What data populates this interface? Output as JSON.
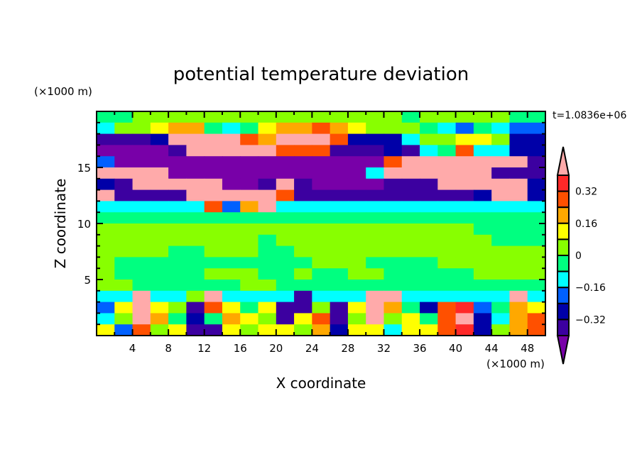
{
  "chart_data": {
    "type": "heatmap",
    "title": "potential temperature deviation",
    "xlabel": "X coordinate",
    "ylabel": "Z coordinate",
    "x_unit_label": "(×1000 m)",
    "y_unit_label": "(×1000 m)",
    "time_label": "t=1.0836e+06",
    "xlim": [
      0,
      50
    ],
    "ylim": [
      0,
      20
    ],
    "x_ticks": [
      4,
      8,
      12,
      16,
      20,
      24,
      28,
      32,
      36,
      40,
      44,
      48
    ],
    "y_ticks": [
      5,
      10,
      15
    ],
    "grid_dx": 2,
    "grid_dz": 1,
    "levels": [
      -0.4,
      -0.32,
      -0.24,
      -0.16,
      -0.08,
      0,
      0.08,
      0.16,
      0.24,
      0.32,
      0.4
    ],
    "colorbar_labels": [
      {
        "value": 0.32,
        "text": "0.32"
      },
      {
        "value": 0.16,
        "text": "0.16"
      },
      {
        "value": 0,
        "text": "0"
      },
      {
        "value": -0.16,
        "text": "−0.16"
      },
      {
        "value": -0.32,
        "text": "−0.32"
      }
    ],
    "colors": [
      "#7800a8",
      "#3c00a0",
      "#0000a8",
      "#0060ff",
      "#00ffff",
      "#00ff80",
      "#88ff00",
      "#ffff00",
      "#ffa800",
      "#ff5000",
      "#ff2828",
      "#ffaaaa"
    ],
    "rows_top_to_bottom": [
      [
        5,
        5,
        6,
        6,
        6,
        6,
        6,
        6,
        6,
        6,
        6,
        6,
        6,
        6,
        6,
        6,
        6,
        5,
        6,
        6,
        6,
        6,
        6,
        5,
        5
      ],
      [
        4,
        6,
        6,
        7,
        8,
        8,
        5,
        4,
        5,
        7,
        8,
        8,
        9,
        8,
        7,
        6,
        6,
        6,
        5,
        4,
        3,
        5,
        4,
        3,
        3
      ],
      [
        1,
        1,
        1,
        2,
        11,
        11,
        11,
        11,
        9,
        8,
        11,
        11,
        11,
        9,
        2,
        2,
        2,
        4,
        6,
        6,
        7,
        7,
        6,
        2,
        2
      ],
      [
        0,
        0,
        0,
        0,
        1,
        11,
        11,
        11,
        11,
        11,
        9,
        9,
        9,
        1,
        1,
        1,
        2,
        1,
        4,
        5,
        9,
        4,
        4,
        2,
        2
      ],
      [
        3,
        0,
        0,
        0,
        0,
        0,
        0,
        0,
        0,
        0,
        0,
        0,
        0,
        0,
        0,
        0,
        9,
        11,
        11,
        11,
        11,
        11,
        11,
        11,
        1
      ],
      [
        11,
        11,
        11,
        11,
        0,
        0,
        0,
        0,
        0,
        0,
        0,
        0,
        0,
        0,
        0,
        4,
        11,
        11,
        11,
        11,
        11,
        11,
        1,
        1,
        1
      ],
      [
        2,
        1,
        11,
        11,
        11,
        11,
        11,
        0,
        0,
        1,
        11,
        1,
        0,
        0,
        0,
        0,
        1,
        1,
        1,
        11,
        11,
        11,
        11,
        11,
        2
      ],
      [
        11,
        1,
        1,
        1,
        1,
        11,
        11,
        11,
        11,
        11,
        9,
        1,
        1,
        1,
        1,
        1,
        1,
        1,
        1,
        1,
        1,
        2,
        11,
        11,
        2
      ],
      [
        4,
        4,
        4,
        4,
        4,
        4,
        9,
        3,
        8,
        11,
        4,
        4,
        4,
        4,
        4,
        4,
        4,
        4,
        4,
        4,
        4,
        4,
        4,
        4,
        4
      ],
      [
        5,
        5,
        5,
        5,
        5,
        5,
        5,
        5,
        5,
        5,
        5,
        5,
        5,
        5,
        5,
        5,
        5,
        5,
        5,
        5,
        5,
        5,
        5,
        5,
        5
      ],
      [
        6,
        6,
        6,
        6,
        6,
        6,
        6,
        6,
        6,
        6,
        6,
        6,
        6,
        6,
        6,
        6,
        6,
        6,
        6,
        6,
        6,
        5,
        5,
        5,
        5
      ],
      [
        6,
        6,
        6,
        6,
        6,
        6,
        6,
        6,
        6,
        5,
        6,
        6,
        6,
        6,
        6,
        6,
        6,
        6,
        6,
        6,
        6,
        6,
        5,
        5,
        5
      ],
      [
        6,
        6,
        6,
        6,
        5,
        5,
        6,
        6,
        6,
        5,
        5,
        6,
        6,
        6,
        6,
        6,
        6,
        6,
        6,
        6,
        6,
        6,
        6,
        6,
        6
      ],
      [
        6,
        5,
        5,
        5,
        5,
        5,
        5,
        5,
        5,
        5,
        5,
        5,
        6,
        6,
        6,
        5,
        5,
        5,
        5,
        6,
        6,
        6,
        6,
        6,
        6
      ],
      [
        6,
        5,
        5,
        5,
        5,
        5,
        6,
        6,
        6,
        5,
        5,
        6,
        5,
        5,
        6,
        6,
        5,
        5,
        5,
        5,
        5,
        6,
        6,
        6,
        6
      ],
      [
        6,
        6,
        5,
        5,
        5,
        5,
        5,
        5,
        6,
        6,
        5,
        5,
        5,
        5,
        5,
        5,
        5,
        5,
        5,
        5,
        5,
        5,
        5,
        5,
        5
      ],
      [
        4,
        4,
        11,
        4,
        4,
        6,
        11,
        4,
        4,
        4,
        4,
        1,
        4,
        4,
        4,
        11,
        11,
        4,
        4,
        4,
        4,
        4,
        4,
        11,
        4
      ],
      [
        3,
        7,
        11,
        7,
        6,
        1,
        9,
        7,
        5,
        7,
        1,
        1,
        6,
        1,
        7,
        11,
        8,
        5,
        2,
        9,
        10,
        3,
        5,
        8,
        7
      ],
      [
        4,
        6,
        11,
        8,
        5,
        2,
        5,
        8,
        7,
        6,
        1,
        7,
        9,
        1,
        6,
        11,
        6,
        7,
        5,
        9,
        11,
        2,
        4,
        8,
        9
      ],
      [
        7,
        3,
        9,
        6,
        7,
        1,
        1,
        7,
        6,
        7,
        7,
        6,
        8,
        2,
        7,
        7,
        4,
        7,
        7,
        9,
        10,
        2,
        6,
        8,
        9
      ]
    ]
  }
}
